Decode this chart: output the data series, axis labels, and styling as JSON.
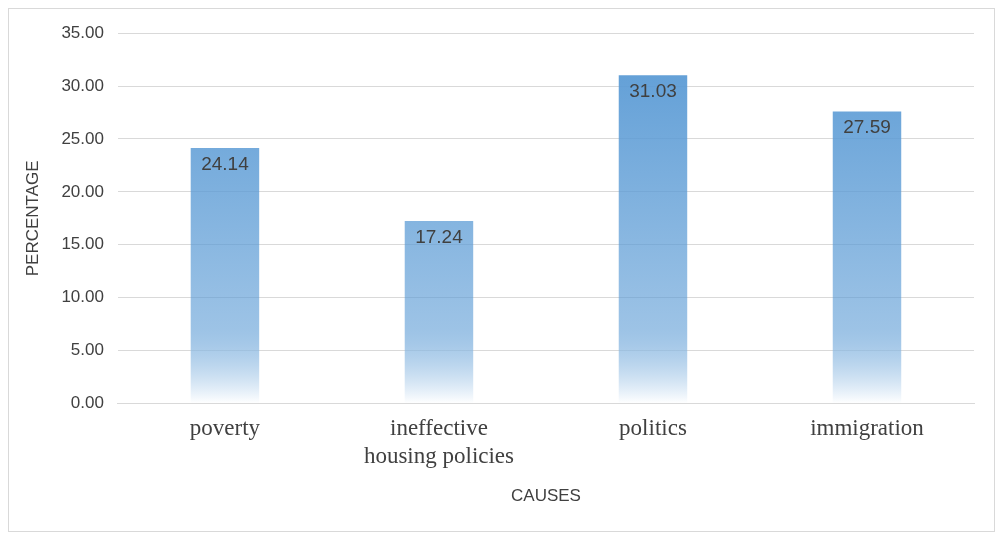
{
  "chart_data": {
    "type": "bar",
    "xlabel": "CAUSES",
    "ylabel": "PERCENTAGE",
    "categories": [
      "poverty",
      "ineffective housing policies",
      "politics",
      "immigration"
    ],
    "values": [
      24.14,
      17.24,
      31.03,
      27.59
    ],
    "color": "#5b9bd5",
    "ylim": [
      0,
      35
    ],
    "yticks": [
      {
        "value": 0,
        "label": "0.00"
      },
      {
        "value": 5,
        "label": "5.00"
      },
      {
        "value": 10,
        "label": "10.00"
      },
      {
        "value": 15,
        "label": "15.00"
      },
      {
        "value": 20,
        "label": "20.00"
      },
      {
        "value": 25,
        "label": "25.00"
      },
      {
        "value": 30,
        "label": "30.00"
      },
      {
        "value": 35,
        "label": "35.00"
      }
    ],
    "grid": "y",
    "legend": false,
    "data_labels": true
  }
}
